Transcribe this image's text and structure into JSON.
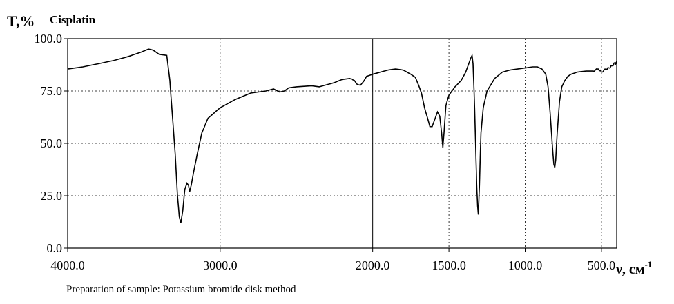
{
  "chart_data": {
    "type": "line",
    "title": "Cisplatin",
    "ylabel": "T,%",
    "xlabel_main": "ν, см",
    "xlabel_sup": "-1",
    "xlim": [
      4000,
      400
    ],
    "ylim": [
      0,
      100
    ],
    "x_ticks": [
      {
        "value": 4000,
        "label": "4000.0"
      },
      {
        "value": 3000,
        "label": "3000.0"
      },
      {
        "value": 2000,
        "label": "2000.0"
      },
      {
        "value": 1500,
        "label": "1500.0"
      },
      {
        "value": 1000,
        "label": "1000.0"
      },
      {
        "value": 500,
        "label": "500.0"
      }
    ],
    "y_ticks": [
      {
        "value": 0,
        "label": "0.0"
      },
      {
        "value": 25,
        "label": "25.0"
      },
      {
        "value": 50,
        "label": "50.0"
      },
      {
        "value": 75,
        "label": "75.0"
      },
      {
        "value": 100,
        "label": "100.0"
      }
    ],
    "grid": true,
    "series": [
      {
        "points": [
          [
            4000,
            85.5
          ],
          [
            3900,
            86.5
          ],
          [
            3800,
            88
          ],
          [
            3700,
            89.5
          ],
          [
            3600,
            91.5
          ],
          [
            3520,
            93.5
          ],
          [
            3470,
            95
          ],
          [
            3440,
            94.5
          ],
          [
            3400,
            92.5
          ],
          [
            3350,
            92
          ],
          [
            3330,
            80
          ],
          [
            3310,
            60
          ],
          [
            3295,
            45
          ],
          [
            3280,
            25
          ],
          [
            3268,
            15
          ],
          [
            3258,
            12
          ],
          [
            3245,
            18
          ],
          [
            3232,
            28
          ],
          [
            3218,
            31
          ],
          [
            3208,
            30
          ],
          [
            3200,
            27
          ],
          [
            3190,
            30
          ],
          [
            3175,
            36
          ],
          [
            3150,
            45
          ],
          [
            3120,
            55
          ],
          [
            3080,
            62
          ],
          [
            3000,
            67
          ],
          [
            2900,
            71
          ],
          [
            2800,
            74
          ],
          [
            2700,
            75
          ],
          [
            2650,
            76
          ],
          [
            2610,
            74.5
          ],
          [
            2580,
            75
          ],
          [
            2550,
            76.5
          ],
          [
            2500,
            77
          ],
          [
            2400,
            77.5
          ],
          [
            2350,
            77
          ],
          [
            2300,
            78
          ],
          [
            2250,
            79
          ],
          [
            2200,
            80.5
          ],
          [
            2150,
            81
          ],
          [
            2120,
            80
          ],
          [
            2100,
            78
          ],
          [
            2080,
            77.8
          ],
          [
            2060,
            79.5
          ],
          [
            2040,
            82
          ],
          [
            2000,
            83
          ],
          [
            1950,
            84
          ],
          [
            1900,
            85
          ],
          [
            1850,
            85.5
          ],
          [
            1800,
            85
          ],
          [
            1750,
            83
          ],
          [
            1720,
            81.5
          ],
          [
            1700,
            78
          ],
          [
            1680,
            74
          ],
          [
            1660,
            67
          ],
          [
            1640,
            62
          ],
          [
            1625,
            58
          ],
          [
            1610,
            58
          ],
          [
            1595,
            61
          ],
          [
            1575,
            65
          ],
          [
            1560,
            63
          ],
          [
            1548,
            55
          ],
          [
            1540,
            48
          ],
          [
            1532,
            55
          ],
          [
            1520,
            68
          ],
          [
            1500,
            73
          ],
          [
            1460,
            77
          ],
          [
            1420,
            80
          ],
          [
            1390,
            84
          ],
          [
            1370,
            88
          ],
          [
            1355,
            91
          ],
          [
            1348,
            92
          ],
          [
            1342,
            88
          ],
          [
            1335,
            75
          ],
          [
            1325,
            50
          ],
          [
            1318,
            30
          ],
          [
            1312,
            20
          ],
          [
            1307,
            16
          ],
          [
            1300,
            30
          ],
          [
            1290,
            55
          ],
          [
            1275,
            67
          ],
          [
            1250,
            75
          ],
          [
            1200,
            81
          ],
          [
            1150,
            84
          ],
          [
            1100,
            85
          ],
          [
            1050,
            85.5
          ],
          [
            1000,
            86
          ],
          [
            950,
            86.5
          ],
          [
            920,
            86.5
          ],
          [
            890,
            85.5
          ],
          [
            865,
            83
          ],
          [
            850,
            77
          ],
          [
            840,
            68
          ],
          [
            830,
            58
          ],
          [
            820,
            47
          ],
          [
            812,
            40
          ],
          [
            806,
            38.5
          ],
          [
            800,
            42
          ],
          [
            790,
            55
          ],
          [
            775,
            70
          ],
          [
            760,
            77
          ],
          [
            740,
            80
          ],
          [
            720,
            82
          ],
          [
            700,
            83
          ],
          [
            660,
            84
          ],
          [
            600,
            84.5
          ],
          [
            560,
            84.5
          ],
          [
            520,
            85.5
          ],
          [
            500,
            84
          ],
          [
            470,
            85.5
          ],
          [
            450,
            86
          ],
          [
            430,
            87
          ],
          [
            410,
            88.5
          ],
          [
            400,
            88
          ]
        ]
      }
    ]
  },
  "footnote": "Preparation of sample: Potassium bromide disk method"
}
